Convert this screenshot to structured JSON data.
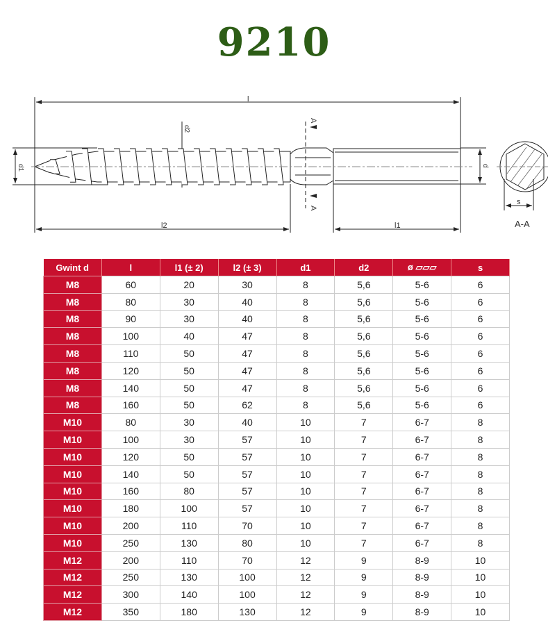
{
  "title": "9210",
  "drawing": {
    "l": "l",
    "l1": "l1",
    "l2": "l2",
    "d": "d",
    "d1": "d1",
    "d2": "d2",
    "s": "s",
    "A": "A",
    "section": "A-A"
  },
  "table": {
    "headers": [
      "Gwint d",
      "l",
      "l1 (± 2)",
      "l2 (± 3)",
      "d1",
      "d2",
      "ø ▱▱▱",
      "s"
    ],
    "rows": [
      [
        "M8",
        "60",
        "20",
        "30",
        "8",
        "5,6",
        "5-6",
        "6"
      ],
      [
        "M8",
        "80",
        "30",
        "40",
        "8",
        "5,6",
        "5-6",
        "6"
      ],
      [
        "M8",
        "90",
        "30",
        "40",
        "8",
        "5,6",
        "5-6",
        "6"
      ],
      [
        "M8",
        "100",
        "40",
        "47",
        "8",
        "5,6",
        "5-6",
        "6"
      ],
      [
        "M8",
        "110",
        "50",
        "47",
        "8",
        "5,6",
        "5-6",
        "6"
      ],
      [
        "M8",
        "120",
        "50",
        "47",
        "8",
        "5,6",
        "5-6",
        "6"
      ],
      [
        "M8",
        "140",
        "50",
        "47",
        "8",
        "5,6",
        "5-6",
        "6"
      ],
      [
        "M8",
        "160",
        "50",
        "62",
        "8",
        "5,6",
        "5-6",
        "6"
      ],
      [
        "M10",
        "80",
        "30",
        "40",
        "10",
        "7",
        "6-7",
        "8"
      ],
      [
        "M10",
        "100",
        "30",
        "57",
        "10",
        "7",
        "6-7",
        "8"
      ],
      [
        "M10",
        "120",
        "50",
        "57",
        "10",
        "7",
        "6-7",
        "8"
      ],
      [
        "M10",
        "140",
        "50",
        "57",
        "10",
        "7",
        "6-7",
        "8"
      ],
      [
        "M10",
        "160",
        "80",
        "57",
        "10",
        "7",
        "6-7",
        "8"
      ],
      [
        "M10",
        "180",
        "100",
        "57",
        "10",
        "7",
        "6-7",
        "8"
      ],
      [
        "M10",
        "200",
        "110",
        "70",
        "10",
        "7",
        "6-7",
        "8"
      ],
      [
        "M10",
        "250",
        "130",
        "80",
        "10",
        "7",
        "6-7",
        "8"
      ],
      [
        "M12",
        "200",
        "110",
        "70",
        "12",
        "9",
        "8-9",
        "10"
      ],
      [
        "M12",
        "250",
        "130",
        "100",
        "12",
        "9",
        "8-9",
        "10"
      ],
      [
        "M12",
        "300",
        "140",
        "100",
        "12",
        "9",
        "8-9",
        "10"
      ],
      [
        "M12",
        "350",
        "180",
        "130",
        "12",
        "9",
        "8-9",
        "10"
      ]
    ]
  }
}
